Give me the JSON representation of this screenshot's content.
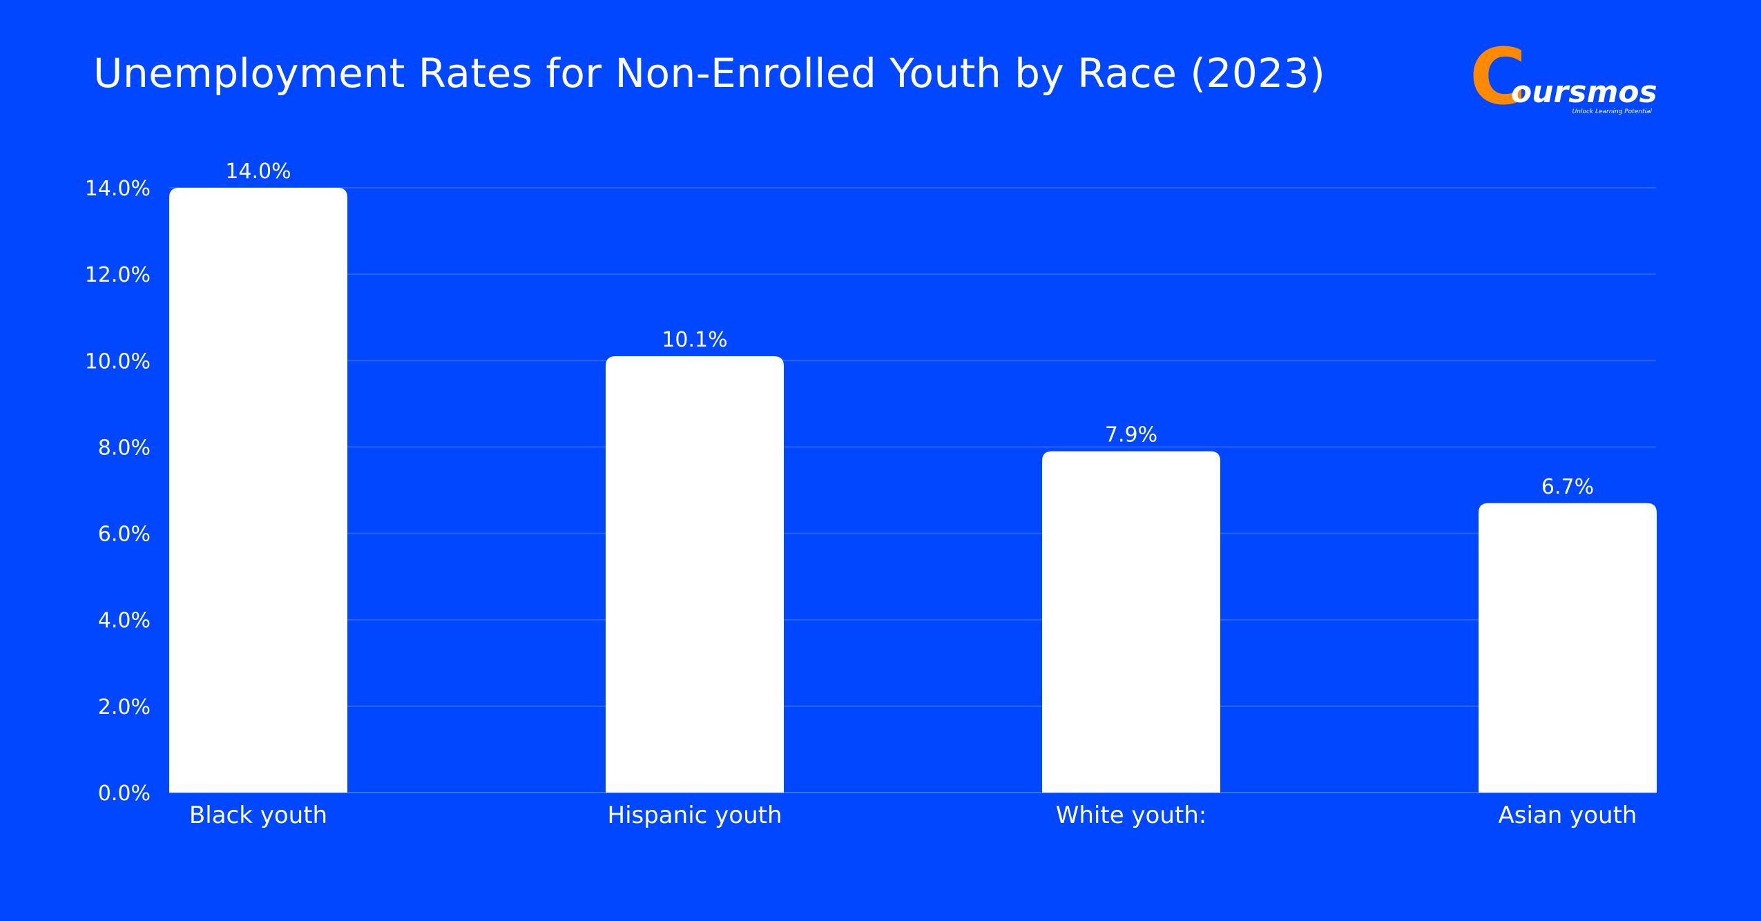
{
  "title": "Unemployment Rates for Non-Enrolled Youth by Race (2023)",
  "logo": {
    "name": "Coursmos",
    "letter": "C",
    "rest": "oursmos",
    "tagline": "Unlock Learning Potential",
    "colors": {
      "primary": "#FF8A00",
      "text": "#ffffff"
    }
  },
  "colors": {
    "background": "#0047FF",
    "bar": "#ffffff",
    "grid": "#2a63ff",
    "text": "#ffffff"
  },
  "chart_data": {
    "type": "bar",
    "title": "Unemployment Rates for Non-Enrolled Youth by Race (2023)",
    "categories": [
      "Black youth",
      "Hispanic youth",
      "White youth:",
      "Asian youth"
    ],
    "values": [
      14.0,
      10.1,
      7.9,
      6.7
    ],
    "value_labels": [
      "14.0%",
      "10.1%",
      "7.9%",
      "6.7%"
    ],
    "ylim": [
      0,
      14
    ],
    "yticks": [
      0,
      2,
      4,
      6,
      8,
      10,
      12,
      14
    ],
    "ytick_labels": [
      "0.0%",
      "2.0%",
      "4.0%",
      "6.0%",
      "8.0%",
      "10.0%",
      "12.0%",
      "14.0%"
    ],
    "xlabel": "",
    "ylabel": "",
    "grid": true,
    "legend": "none"
  }
}
